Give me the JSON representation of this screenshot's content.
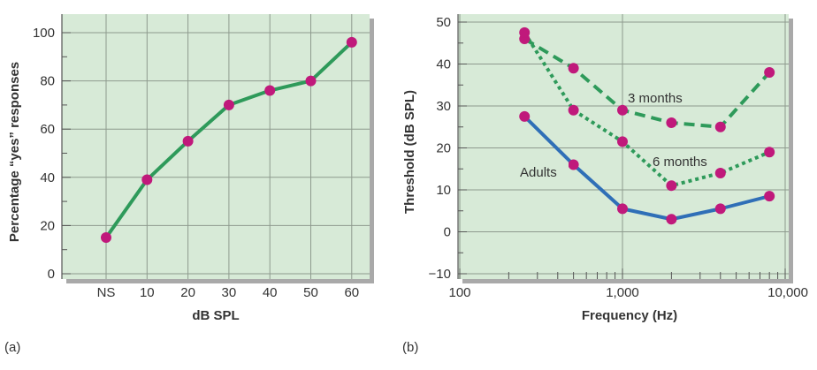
{
  "colors": {
    "plot_background": "#d7ead7",
    "plot_shadow": "#a9a9a9",
    "grid": "#8e9a8e",
    "green_line": "#2e9a5a",
    "blue_line": "#2f6fb7",
    "marker": "#c0197b"
  },
  "panel_labels": [
    "(a)",
    "(b)"
  ],
  "chart_data": [
    {
      "type": "line",
      "panel": "(a)",
      "categories": [
        "NS",
        "10",
        "20",
        "30",
        "40",
        "50",
        "60"
      ],
      "series": [
        {
          "values": [
            15,
            39,
            55,
            70,
            76,
            80,
            96
          ],
          "color": "green_line",
          "style": "solid"
        }
      ],
      "xlabel": "dB SPL",
      "ylabel": "Percentage “yes” responses",
      "ylim": [
        0,
        100
      ],
      "yticks": [
        "0",
        "20",
        "40",
        "60",
        "80",
        "100"
      ],
      "grid": true
    },
    {
      "type": "line",
      "panel": "(b)",
      "xscale": "log",
      "xlim": [
        100,
        10000
      ],
      "xticks": [
        "100",
        "1,000",
        "10,000"
      ],
      "xlabel": "Frequency (Hz)",
      "ylabel": "Threshold (dB SPL)",
      "ylim": [
        -10,
        50
      ],
      "yticks": [
        "−10",
        "0",
        "10",
        "20",
        "30",
        "40",
        "50"
      ],
      "grid": true,
      "series": [
        {
          "name": "3 months",
          "x": [
            250,
            500,
            1000,
            2000,
            4000,
            8000
          ],
          "y": [
            46,
            39,
            29,
            26,
            25,
            38
          ],
          "color": "green_line",
          "style": "dashed"
        },
        {
          "name": "6 months",
          "x": [
            250,
            500,
            1000,
            2000,
            4000,
            8000
          ],
          "y": [
            47.5,
            29,
            21.5,
            11,
            14,
            19
          ],
          "color": "green_line",
          "style": "dotted"
        },
        {
          "name": "Adults",
          "x": [
            250,
            500,
            1000,
            2000,
            4000,
            8000
          ],
          "y": [
            27.5,
            16,
            5.5,
            3,
            5.5,
            8.5
          ],
          "color": "blue_line",
          "style": "solid"
        }
      ]
    }
  ]
}
